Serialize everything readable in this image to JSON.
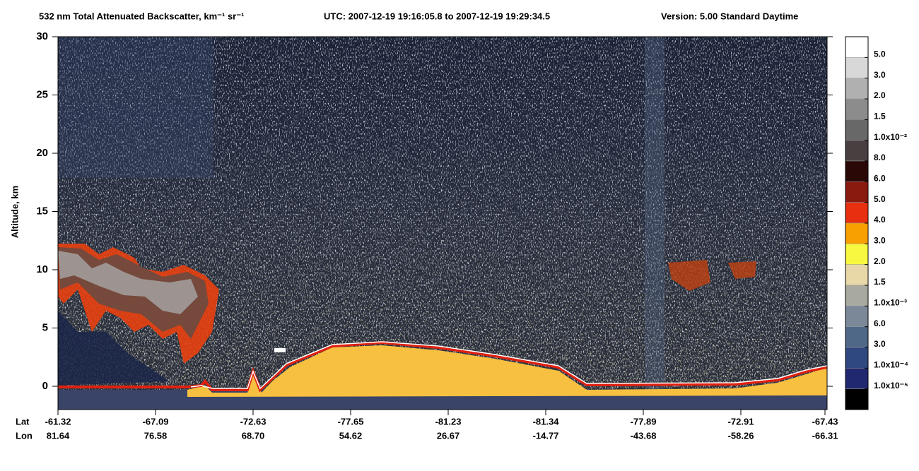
{
  "chart_data": {
    "type": "heatmap",
    "title": "532 nm Total Attenuated Backscatter, km⁻¹ sr⁻¹",
    "time_range": "UTC:  2007-12-19 19:16:05.8  to  2007-12-19 19:29:34.5",
    "version": "Version: 5.00  Standard  Daytime",
    "ylabel": "Altitude, km",
    "ylim": [
      -2,
      30
    ],
    "yticks": [
      0,
      5,
      10,
      15,
      20,
      25,
      30
    ],
    "x_rows": [
      {
        "name": "Lat",
        "labels": [
          "-61.32",
          "-67.09",
          "-72.63",
          "-77.65",
          "-81.23",
          "-81.34",
          "-77.89",
          "-72.91",
          "-67.43"
        ]
      },
      {
        "name": "Lon",
        "labels": [
          "81.64",
          "76.58",
          "68.70",
          "54.62",
          "26.67",
          "-14.77",
          "-43.68",
          "-58.26",
          "-66.31"
        ]
      }
    ],
    "colorbar": {
      "colors": [
        "#ffffff",
        "#d8d8d8",
        "#b0b0b0",
        "#8c8c8c",
        "#686868",
        "#484040",
        "#2a0806",
        "#8a1a10",
        "#e83010",
        "#f8a000",
        "#f8f840",
        "#e8d8a8",
        "#a8aaa0",
        "#7a8898",
        "#506888",
        "#304880",
        "#202870",
        "#000000"
      ],
      "labels": [
        "5.0",
        "3.0",
        "2.0",
        "1.5",
        "1.0x10⁻²",
        "8.0",
        "6.0",
        "5.0",
        "4.0",
        "3.0",
        "2.0",
        "1.5",
        "1.0x10⁻³",
        "6.0",
        "3.0",
        "1.0x10⁻⁴",
        "1.0x10⁻⁵"
      ]
    }
  }
}
